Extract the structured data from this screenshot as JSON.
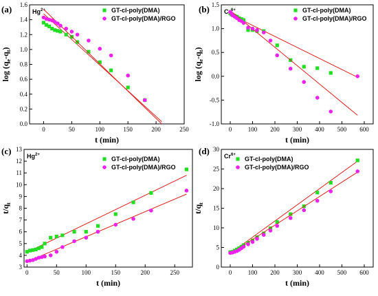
{
  "colors": {
    "green": "#22dd22",
    "magenta": "#ee22ee",
    "fit": "#e02020",
    "axis": "#000000"
  },
  "chart_data": [
    {
      "type": "scatter",
      "panel_label": "(a)",
      "ion": "Hg",
      "ion_sup": "2+",
      "xlabel": "t (min)",
      "ylabel": "log (q",
      "xlim": [
        -25,
        250
      ],
      "ylim": [
        0,
        1.6
      ],
      "xticks": [
        "0",
        "50",
        "100",
        "150",
        "200",
        "250"
      ],
      "yticks": [
        "0.0",
        "0.2",
        "0.4",
        "0.6",
        "0.8",
        "1.0",
        "1.2",
        "1.4",
        "1.6"
      ],
      "legend_loc": "top-right",
      "grid": false,
      "series": [
        {
          "name": "GT-cl-poly(DMA)",
          "color_key": "green",
          "marker": "square",
          "x": [
            0,
            5,
            10,
            15,
            20,
            25,
            30,
            40,
            50,
            60,
            80,
            100,
            120,
            150,
            180
          ],
          "y": [
            1.36,
            1.33,
            1.31,
            1.28,
            1.26,
            1.25,
            1.24,
            1.2,
            1.17,
            1.1,
            0.97,
            0.83,
            0.72,
            0.49,
            0.32
          ],
          "fit": [
            [
              0,
              1.48
            ],
            [
              210,
              0.03
            ]
          ]
        },
        {
          "name": "GT-cl-poly(DMA)/RGO",
          "color_key": "magenta",
          "marker": "circle",
          "x": [
            0,
            5,
            10,
            15,
            20,
            25,
            30,
            40,
            50,
            60,
            80,
            100,
            120,
            150,
            180
          ],
          "y": [
            1.43,
            1.41,
            1.4,
            1.39,
            1.37,
            1.35,
            1.32,
            1.28,
            1.24,
            1.2,
            1.12,
            1.01,
            0.92,
            0.65,
            0.32
          ],
          "fit": [
            [
              0,
              1.54
            ],
            [
              210,
              0.0
            ]
          ]
        }
      ]
    },
    {
      "type": "scatter",
      "panel_label": "(b)",
      "ion": "Cr",
      "ion_sup": "6+",
      "xlabel": "t (min)",
      "ylabel": "log (q",
      "xlim": [
        -40,
        640
      ],
      "ylim": [
        -1.0,
        1.5
      ],
      "xticks": [
        "0",
        "100",
        "200",
        "300",
        "400",
        "500",
        "600"
      ],
      "yticks": [
        "-1.0",
        "-0.5",
        "0.0",
        "0.5",
        "1.0",
        "1.5"
      ],
      "legend_loc": "top-right",
      "grid": false,
      "series": [
        {
          "name": "GT-cl-poly(DMA)",
          "color_key": "green",
          "marker": "square",
          "x": [
            0,
            5,
            10,
            20,
            30,
            40,
            50,
            60,
            80,
            100,
            120,
            150,
            210,
            270,
            330,
            390,
            450
          ],
          "y": [
            1.32,
            1.3,
            1.29,
            1.27,
            1.25,
            1.22,
            1.2,
            1.18,
            0.97,
            0.97,
            0.95,
            0.95,
            0.65,
            0.34,
            0.2,
            0.17,
            0.07
          ],
          "fit": [
            [
              0,
              1.3
            ],
            [
              570,
              -0.02
            ]
          ]
        },
        {
          "name": "GT-cl-poly(DMA)/RGO",
          "color_key": "magenta",
          "marker": "circle",
          "x": [
            0,
            5,
            10,
            20,
            30,
            40,
            50,
            60,
            80,
            100,
            120,
            150,
            180,
            210,
            270,
            330,
            390,
            450,
            570
          ],
          "y": [
            1.35,
            1.32,
            1.28,
            1.25,
            1.22,
            1.18,
            1.16,
            1.12,
            1.02,
            1.0,
            0.97,
            0.92,
            0.75,
            0.44,
            0.16,
            -0.12,
            -0.45,
            -0.74,
            0.0
          ],
          "fit": [
            [
              0,
              1.38
            ],
            [
              570,
              -0.82
            ]
          ]
        }
      ]
    },
    {
      "type": "scatter",
      "panel_label": "(c)",
      "ion": "Hg",
      "ion_sup": "2+",
      "xlabel": "t (min)",
      "ylabel": "t/q",
      "xlim": [
        -5,
        280
      ],
      "ylim": [
        3,
        13
      ],
      "xticks": [
        "0",
        "50",
        "100",
        "150",
        "200",
        "250"
      ],
      "yticks": [
        "3",
        "4",
        "5",
        "6",
        "7",
        "8",
        "9",
        "10",
        "11",
        "12",
        "13"
      ],
      "legend_loc": "top-right",
      "grid": false,
      "series": [
        {
          "name": "GT-cl-poly(DMA)",
          "color_key": "green",
          "marker": "square",
          "x": [
            0,
            5,
            10,
            15,
            20,
            25,
            30,
            40,
            50,
            60,
            80,
            100,
            120,
            150,
            180,
            210,
            270
          ],
          "y": [
            4.3,
            4.4,
            4.45,
            4.5,
            4.6,
            4.7,
            5.0,
            5.5,
            5.6,
            5.7,
            6.0,
            6.0,
            6.5,
            7.5,
            8.5,
            9.3,
            11.3
          ],
          "fit": [
            [
              0,
              4.25
            ],
            [
              270,
              10.8
            ]
          ]
        },
        {
          "name": "GT-cl-poly(DMA)/RGO",
          "color_key": "magenta",
          "marker": "circle",
          "x": [
            0,
            5,
            10,
            15,
            20,
            25,
            30,
            40,
            50,
            60,
            80,
            100,
            120,
            150,
            180,
            210,
            270
          ],
          "y": [
            3.5,
            3.55,
            3.6,
            3.7,
            3.8,
            3.85,
            3.9,
            4.0,
            4.3,
            4.7,
            5.2,
            5.5,
            6.0,
            6.6,
            7.1,
            7.8,
            9.5
          ],
          "fit": [
            [
              0,
              3.45
            ],
            [
              270,
              9.2
            ]
          ]
        }
      ]
    },
    {
      "type": "scatter",
      "panel_label": "(d)",
      "ion": "Cr",
      "ion_sup": "6+",
      "xlabel": "t (min)",
      "ylabel": "t/q",
      "xlim": [
        -40,
        640
      ],
      "ylim": [
        0,
        30
      ],
      "xticks": [
        "0",
        "100",
        "200",
        "300",
        "400",
        "500",
        "600"
      ],
      "yticks": [
        "0",
        "5",
        "10",
        "15",
        "20",
        "25",
        "30"
      ],
      "legend_loc": "top-left",
      "grid": false,
      "series": [
        {
          "name": "GT-cl-poly(DMA)",
          "color_key": "green",
          "marker": "square",
          "x": [
            0,
            10,
            20,
            30,
            40,
            50,
            60,
            80,
            100,
            120,
            150,
            180,
            210,
            270,
            330,
            390,
            450,
            570
          ],
          "y": [
            3.8,
            3.9,
            4.2,
            4.5,
            4.8,
            5.2,
            5.6,
            6.2,
            6.8,
            7.6,
            8.6,
            9.9,
            11.5,
            13.5,
            15.5,
            19.0,
            21.5,
            27.2
          ],
          "fit": [
            [
              0,
              3.5
            ],
            [
              570,
              27.0
            ]
          ]
        },
        {
          "name": "GT-cl-poly(DMA)/RGO",
          "color_key": "magenta",
          "marker": "circle",
          "x": [
            0,
            10,
            20,
            30,
            40,
            50,
            60,
            80,
            100,
            120,
            150,
            180,
            210,
            270,
            330,
            390,
            450,
            570
          ],
          "y": [
            3.6,
            3.7,
            3.9,
            4.1,
            4.4,
            4.8,
            5.2,
            5.8,
            6.4,
            7.2,
            8.2,
            9.3,
            10.5,
            12.5,
            14.5,
            16.9,
            19.3,
            24.4
          ],
          "fit": [
            [
              0,
              3.4
            ],
            [
              570,
              24.2
            ]
          ]
        }
      ]
    }
  ]
}
